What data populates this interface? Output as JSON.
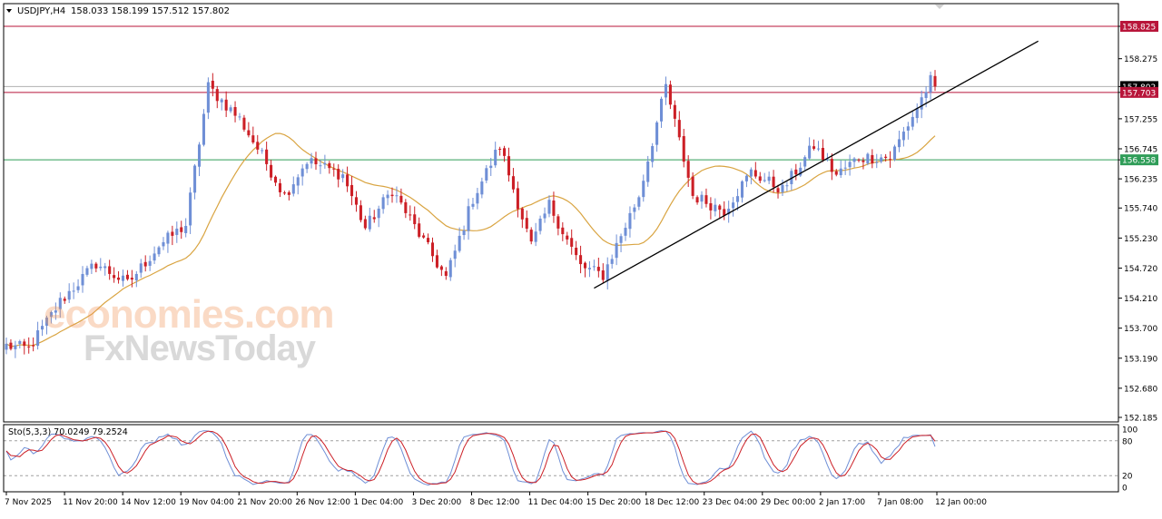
{
  "header": {
    "symbol": "USDJPY,H4",
    "ohlc": "158.033 158.199 157.512 157.802"
  },
  "watermark": {
    "line1": "economies.com",
    "line2": "FxNewsToday"
  },
  "colors": {
    "bull": "#6f8fd6",
    "bear": "#cc1f26",
    "ma": "#d9a441",
    "trendline": "#000000",
    "resistance": "#b8153a",
    "support": "#2f9d58",
    "stoch_main": "#6f8fd6",
    "stoch_signal": "#cc1f26"
  },
  "chart_data": {
    "type": "candlestick",
    "y_axis_labels": [
      "158.825",
      "158.275",
      "157.802",
      "157.703",
      "157.255",
      "156.745",
      "156.558",
      "156.235",
      "155.740",
      "155.230",
      "154.720",
      "154.210",
      "153.700",
      "153.190",
      "152.680",
      "152.185"
    ],
    "ylim": [
      152.185,
      158.825
    ],
    "x_tick_labels": [
      "7 Nov 2025",
      "11 Nov 20:00",
      "14 Nov 12:00",
      "19 Nov 04:00",
      "21 Nov 20:00",
      "26 Nov 12:00",
      "1 Dec 04:00",
      "3 Dec 20:00",
      "8 Dec 12:00",
      "11 Dec 04:00",
      "15 Dec 20:00",
      "18 Dec 12:00",
      "23 Dec 04:00",
      "29 Dec 00:00",
      "2 Jan 17:00",
      "7 Jan 08:00",
      "12 Jan 00:00"
    ],
    "horizontal_levels": [
      {
        "price": 158.825,
        "label": "158.825",
        "color": "#b8153a"
      },
      {
        "price": 157.703,
        "label": "157.703",
        "color": "#b8153a"
      },
      {
        "price": 156.558,
        "label": "156.558",
        "color": "#2f9d58"
      }
    ],
    "current_price": {
      "price": 157.802,
      "label": "157.802"
    },
    "trendline": {
      "from": {
        "index": 131,
        "price": 154.38
      },
      "to": {
        "index": 207,
        "price": 157.6
      }
    },
    "moving_average": {
      "color": "#d9a441"
    },
    "key_points": [
      [
        0,
        153.4
      ],
      [
        5,
        153.35
      ],
      [
        12,
        154.15
      ],
      [
        20,
        154.8
      ],
      [
        27,
        154.45
      ],
      [
        34,
        155.1
      ],
      [
        40,
        155.45
      ],
      [
        45,
        157.8
      ],
      [
        52,
        157.25
      ],
      [
        58,
        156.5
      ],
      [
        62,
        155.95
      ],
      [
        67,
        156.55
      ],
      [
        75,
        156.3
      ],
      [
        80,
        155.4
      ],
      [
        86,
        156.05
      ],
      [
        92,
        155.3
      ],
      [
        98,
        154.55
      ],
      [
        104,
        155.9
      ],
      [
        110,
        156.8
      ],
      [
        117,
        155.1
      ],
      [
        121,
        155.8
      ],
      [
        128,
        154.75
      ],
      [
        133,
        154.6
      ],
      [
        141,
        155.95
      ],
      [
        147,
        157.8
      ],
      [
        153,
        155.95
      ],
      [
        160,
        155.7
      ],
      [
        166,
        156.35
      ],
      [
        173,
        156.05
      ],
      [
        180,
        156.8
      ],
      [
        185,
        156.3
      ],
      [
        190,
        156.6
      ],
      [
        197,
        156.6
      ],
      [
        202,
        157.3
      ],
      [
        207,
        158.05
      ]
    ],
    "stochastic": {
      "title": "Sto(5,3,3) 70.0249 79.2524",
      "main": 70.0249,
      "signal": 79.2524,
      "levels": [
        20,
        80
      ],
      "axis_labels": [
        "100",
        "80",
        "20",
        "0"
      ]
    }
  }
}
